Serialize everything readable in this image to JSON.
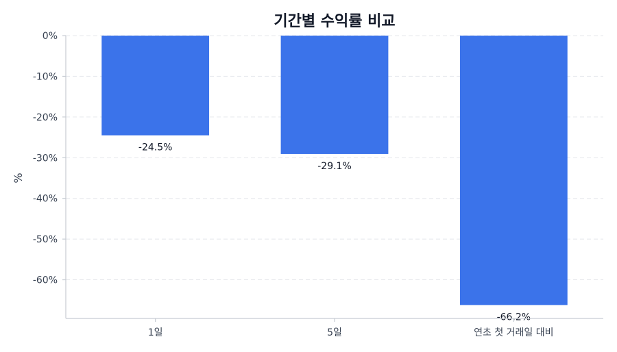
{
  "chart_data": {
    "type": "bar",
    "title": "기간별 수익률 비교",
    "xlabel": "",
    "ylabel": "%",
    "categories": [
      "1일",
      "5일",
      "연초 첫 거래일 대비"
    ],
    "values": [
      -24.5,
      -29.1,
      -66.2
    ],
    "data_labels": [
      "-24.5%",
      "-29.1%",
      "-66.2%"
    ],
    "yticks": [
      0,
      -10,
      -20,
      -30,
      -40,
      -50,
      -60
    ],
    "ytick_labels": [
      "0%",
      "-10%",
      "-20%",
      "-30%",
      "-40%",
      "-50%",
      "-60%"
    ],
    "ylim": [
      -69.5,
      0
    ],
    "grid": true,
    "bar_color": "#3b73ea"
  }
}
